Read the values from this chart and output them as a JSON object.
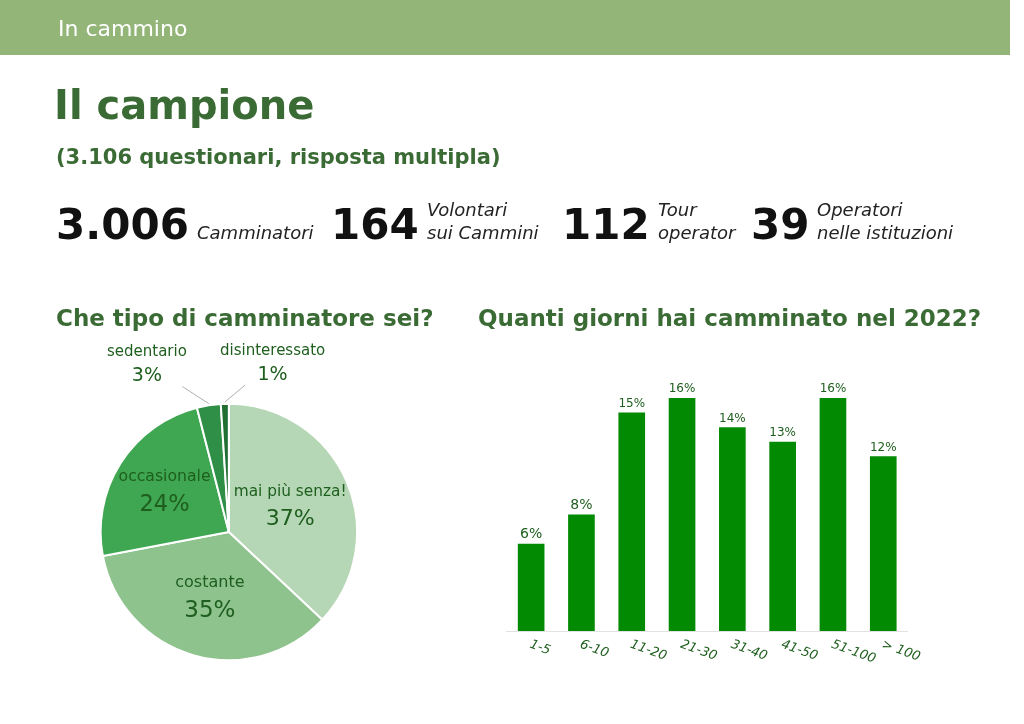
{
  "chart_data": [
    {
      "type": "other",
      "title": "Il campione",
      "subtitle": "(3.106 questionari, risposta multipla)",
      "annotations": [
        "In cammino",
        "3.006",
        "Camminatori",
        "164",
        "Volontari\nsui Cammini",
        "112",
        "Tour\noperator",
        "39",
        "Operatori\nnelle istituzioni"
      ]
    },
    {
      "type": "pie",
      "title": "Che tipo di camminatore sei?",
      "categories": [
        "mai più senza!",
        "costante",
        "occasionale",
        "sedentario",
        "disinteressato"
      ],
      "values": [
        37,
        35,
        24,
        3,
        1
      ],
      "value_labels": [
        "37%",
        "35%",
        "24%",
        "3%",
        "1%"
      ],
      "colors": [
        "#b6d7b5",
        "#8ec38e",
        "#3fa652",
        "#2f8f46",
        "#1f6f33"
      ]
    },
    {
      "type": "bar",
      "title": "Quanti giorni hai camminato nel 2022?",
      "categories": [
        "1-5",
        "6-10",
        "11-20",
        "21-30",
        "31-40",
        "41-50",
        "51-100",
        "> 100"
      ],
      "values": [
        6,
        8,
        15,
        16,
        14,
        13,
        16,
        12
      ],
      "value_labels": [
        "6%",
        "8%",
        "15%",
        "16%",
        "14%",
        "13%",
        "16%",
        "12%"
      ],
      "color": "#028a03"
    }
  ]
}
